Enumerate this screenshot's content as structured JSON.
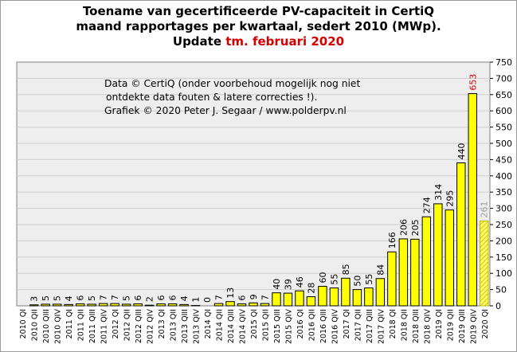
{
  "title": {
    "line1": "Toename van gecertificeerde PV-capaciteit in CertiQ",
    "line2": "maand rapportages per kwartaal, sedert 2010 (MWp).",
    "line3_prefix": "Update ",
    "line3_highlight": "tm. februari 2020"
  },
  "credits": {
    "line1": "Data © CertiQ (onder voorbehoud mogelijk  nog niet",
    "line2": "ontdekte data fouten & latere correcties !).",
    "line3": "Grafiek  © 2020 Peter J. Segaar / www.polderpv.nl"
  },
  "colors": {
    "bar_fill": "#ffff00",
    "bar_stroke": "#000000",
    "highlight_label": "#d40000",
    "partial_label": "#a0a0a0",
    "partial_hatch": "#c8b400",
    "plot_background": "#eeeeee",
    "grid": "#cfcfcf"
  },
  "chart_data": {
    "type": "bar",
    "title": "Toename van gecertificeerde PV-capaciteit in CertiQ maand rapportages per kwartaal, sedert 2010 (MWp). Update tm. februari 2020",
    "xlabel": "",
    "ylabel": "",
    "ylim": [
      0,
      750
    ],
    "yticks": [
      0,
      50,
      100,
      150,
      200,
      250,
      300,
      350,
      400,
      450,
      500,
      550,
      600,
      650,
      700,
      750
    ],
    "y_axis_side": "right",
    "grid": true,
    "categories": [
      "2010 QI",
      "2010 QII",
      "2010 QIII",
      "2010 QIV",
      "2011 QI",
      "2011 QII",
      "2011 QIII",
      "2011 QIV",
      "2012 QI",
      "2012 QII",
      "2012 QIII",
      "2012 QIV",
      "2013 QI",
      "2013 QII",
      "2013 QIII",
      "2013 QIV",
      "2014 QI",
      "2014 QII",
      "2014 QIII",
      "2014 QIV",
      "2015 QI",
      "2015 QII",
      "2015 QIII",
      "2015 QIV",
      "2016 QI",
      "2016 QII",
      "2016 QIII",
      "2016 QIV",
      "2017 QI",
      "2017 QII",
      "2017 QIII",
      "2017 QIV",
      "2018 QI",
      "2018 QII",
      "2018 QIII",
      "2018 QIV",
      "2019 QI",
      "2019 QII",
      "2019 QIII",
      "2019 QIV",
      "2020 QI"
    ],
    "values": [
      0,
      3,
      5,
      5,
      4,
      6,
      5,
      7,
      7,
      5,
      6,
      2,
      6,
      6,
      4,
      1,
      0,
      7,
      13,
      6,
      9,
      7,
      40,
      39,
      46,
      28,
      60,
      55,
      85,
      50,
      55,
      84,
      166,
      206,
      205,
      274,
      314,
      295,
      440,
      653,
      261
    ],
    "value_labels": [
      "",
      "3",
      "5",
      "5",
      "4",
      "6",
      "5",
      "7",
      "7",
      "5",
      "6",
      "2",
      "6",
      "6",
      "4",
      "1",
      "0",
      "7",
      "13",
      "6",
      "9",
      "7",
      "40",
      "39",
      "46",
      "28",
      "60",
      "55",
      "85",
      "50",
      "55",
      "84",
      "166",
      "206",
      "205",
      "274",
      "314",
      "295",
      "440",
      "653",
      "261"
    ],
    "highlight_index": 39,
    "partial_index": 40
  }
}
